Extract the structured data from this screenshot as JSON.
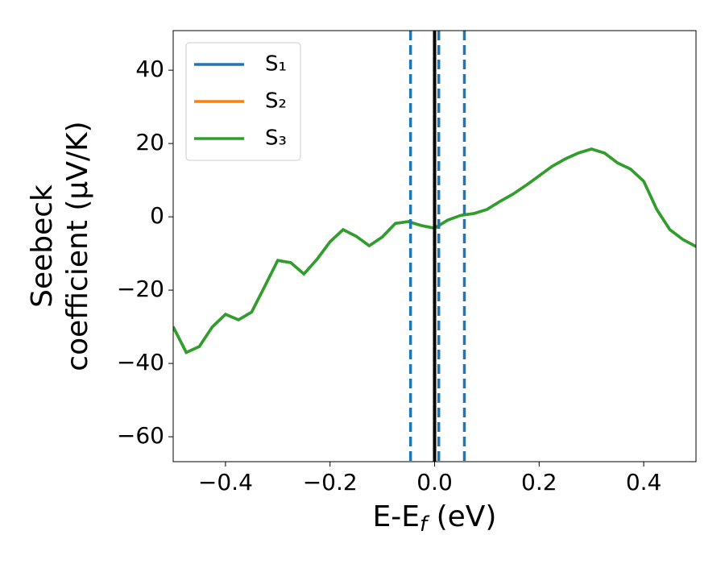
{
  "chart_data": {
    "type": "line",
    "xlabel": [
      "E-E",
      "f",
      " (eV)"
    ],
    "ylabel": [
      "Seebeck",
      "coefficient  (μV/K)"
    ],
    "x": [
      -0.5,
      -0.475,
      -0.45,
      -0.425,
      -0.4,
      -0.375,
      -0.35,
      -0.325,
      -0.3,
      -0.275,
      -0.25,
      -0.225,
      -0.2,
      -0.175,
      -0.15,
      -0.125,
      -0.1,
      -0.075,
      -0.05,
      -0.025,
      0,
      0.025,
      0.05,
      0.075,
      0.1,
      0.125,
      0.15,
      0.175,
      0.2,
      0.225,
      0.25,
      0.275,
      0.3,
      0.325,
      0.35,
      0.375,
      0.4,
      0.425,
      0.45,
      0.475,
      0.5
    ],
    "series": [
      {
        "name": "S₁",
        "color": "#1f77b4",
        "values": [
          -30,
          -37,
          -35.4,
          -30,
          -26.6,
          -28.1,
          -26,
          -19,
          -11.9,
          -12.5,
          -15.6,
          -11.6,
          -6.8,
          -3.5,
          -5.3,
          -7.9,
          -5.5,
          -1.8,
          -1.3,
          -2.4,
          -3.1,
          -0.9,
          0.4,
          0.9,
          2,
          4.2,
          6.2,
          8.6,
          11.2,
          13.8,
          15.8,
          17.4,
          18.5,
          17.4,
          14.7,
          13,
          9.7,
          2,
          -3.5,
          -6.2,
          -8.1
        ]
      },
      {
        "name": "S₂",
        "color": "#ff7f0e",
        "values": [
          -30,
          -37,
          -35.4,
          -30,
          -26.6,
          -28.1,
          -26,
          -19,
          -11.9,
          -12.5,
          -15.6,
          -11.6,
          -6.8,
          -3.5,
          -5.3,
          -7.9,
          -5.5,
          -1.8,
          -1.3,
          -2.4,
          -3.1,
          -0.9,
          0.4,
          0.9,
          2,
          4.2,
          6.2,
          8.6,
          11.2,
          13.8,
          15.8,
          17.4,
          18.5,
          17.4,
          14.7,
          13,
          9.7,
          2,
          -3.5,
          -6.2,
          -8.1
        ]
      },
      {
        "name": "S₃",
        "color": "#2ca02c",
        "values": [
          -30,
          -37,
          -35.4,
          -30,
          -26.6,
          -28.1,
          -26,
          -19,
          -11.9,
          -12.5,
          -15.6,
          -11.6,
          -6.8,
          -3.5,
          -5.3,
          -7.9,
          -5.5,
          -1.8,
          -1.3,
          -2.4,
          -3.1,
          -0.9,
          0.4,
          0.9,
          2,
          4.2,
          6.2,
          8.6,
          11.2,
          13.8,
          15.8,
          17.4,
          18.5,
          17.4,
          14.7,
          13,
          9.7,
          2,
          -3.5,
          -6.2,
          -8.1
        ]
      }
    ],
    "vlines": [
      {
        "x": 0,
        "color": "#000000",
        "style": "solid"
      },
      {
        "x": -0.046,
        "color": "#1f77b4",
        "style": "dashed"
      },
      {
        "x": 0.008,
        "color": "#1f77b4",
        "style": "dashed"
      },
      {
        "x": 0.057,
        "color": "#1f77b4",
        "style": "dashed"
      }
    ],
    "xlim": [
      -0.5,
      0.5
    ],
    "xticks": [
      {
        "value": -0.4,
        "label": "−0.4"
      },
      {
        "value": -0.2,
        "label": "−0.2"
      },
      {
        "value": 0,
        "label": "0.0"
      },
      0.2,
      0.4
    ],
    "ylim": [
      -66.8,
      50.8
    ],
    "yticks": [
      {
        "value": -60,
        "label": "−60"
      },
      {
        "value": -40,
        "label": "−40"
      },
      {
        "value": -20,
        "label": "−20"
      },
      0,
      20,
      40
    ],
    "grid": false,
    "legend": "upper left"
  }
}
